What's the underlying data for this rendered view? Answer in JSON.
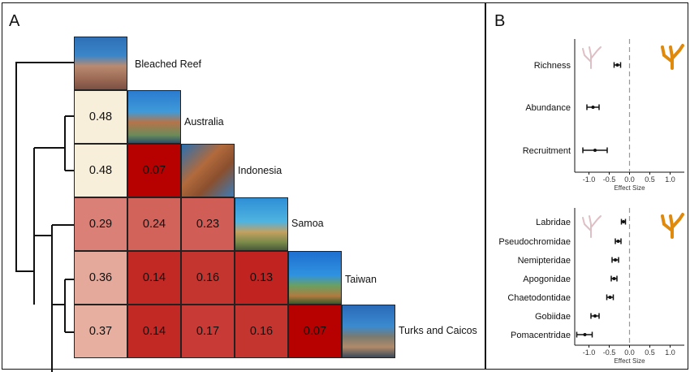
{
  "panels": {
    "a_label": "A",
    "b_label": "B"
  },
  "chart_data": [
    {
      "type": "heatmap",
      "sites": [
        "Bleached Reef",
        "Australia",
        "Indonesia",
        "Samoa",
        "Taiwan",
        "Turks and Caicos"
      ],
      "matrix": [
        {
          "row": "Australia",
          "values": [
            0.48
          ]
        },
        {
          "row": "Indonesia",
          "values": [
            0.48,
            0.07
          ]
        },
        {
          "row": "Samoa",
          "values": [
            0.29,
            0.24,
            0.23
          ]
        },
        {
          "row": "Taiwan",
          "values": [
            0.36,
            0.14,
            0.16,
            0.13
          ]
        },
        {
          "row": "Turks and Caicos",
          "values": [
            0.37,
            0.14,
            0.17,
            0.16,
            0.07
          ]
        }
      ],
      "display_values": [
        [
          "0.48"
        ],
        [
          "0.48",
          "0.07"
        ],
        [
          "0.29",
          "0.24",
          "0.23"
        ],
        [
          "0.36",
          "0.14",
          "0.16",
          "0.13"
        ],
        [
          "0.37",
          "0.14",
          "0.17",
          "0.16",
          "0.07"
        ]
      ],
      "color_low": "#fbfbe6",
      "color_high": "#b70000"
    },
    {
      "type": "scatter",
      "points": [
        {
          "label": "Richness",
          "value": -0.3,
          "lo": -0.38,
          "hi": -0.22
        },
        {
          "label": "Abundance",
          "value": -0.9,
          "lo": -1.05,
          "hi": -0.75
        },
        {
          "label": "Recruitment",
          "value": -0.85,
          "lo": -1.15,
          "hi": -0.55
        }
      ],
      "xlabel": "Effect Size",
      "xlim": [
        -1.35,
        1.35
      ],
      "xticks": [
        "-1.0",
        "-0.5",
        "0.0",
        "0.5",
        "1.0"
      ]
    },
    {
      "type": "scatter",
      "points": [
        {
          "label": "Labridae",
          "value": -0.15,
          "lo": -0.2,
          "hi": -0.1
        },
        {
          "label": "Pseudochromidae",
          "value": -0.28,
          "lo": -0.35,
          "hi": -0.21
        },
        {
          "label": "Nemipteridae",
          "value": -0.35,
          "lo": -0.43,
          "hi": -0.27
        },
        {
          "label": "Apogonidae",
          "value": -0.38,
          "lo": -0.45,
          "hi": -0.31
        },
        {
          "label": "Chaetodontidae",
          "value": -0.48,
          "lo": -0.56,
          "hi": -0.4
        },
        {
          "label": "Gobiidae",
          "value": -0.85,
          "lo": -0.95,
          "hi": -0.75
        },
        {
          "label": "Pomacentridae",
          "value": -1.1,
          "lo": -1.3,
          "hi": -0.92
        }
      ],
      "xlabel": "Effect Size",
      "xlim": [
        -1.35,
        1.35
      ],
      "xticks": [
        "-1.0",
        "-0.5",
        "0.0",
        "0.5",
        "1.0"
      ]
    }
  ],
  "colors": {
    "coral_bleached": "#ddbfc4",
    "coral_healthy": "#df8a0c"
  }
}
